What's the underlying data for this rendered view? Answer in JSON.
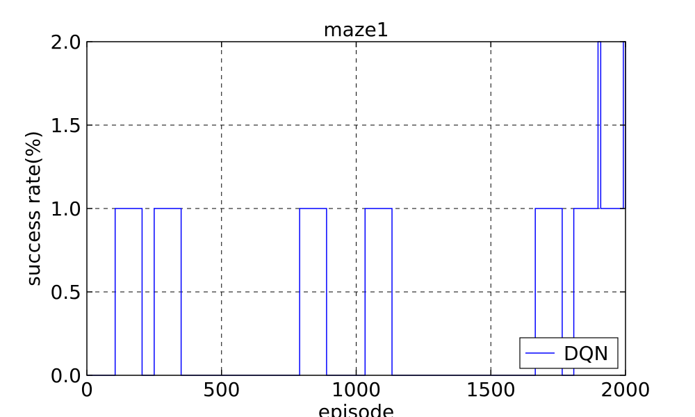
{
  "chart_data": {
    "type": "line",
    "title": "maze1",
    "xlabel": "episode",
    "ylabel": "success rate(%)",
    "xlim": [
      0,
      2000
    ],
    "ylim": [
      0,
      2.0
    ],
    "xticks": [
      0,
      500,
      1000,
      1500,
      2000
    ],
    "yticks": [
      0.0,
      0.5,
      1.0,
      1.5,
      2.0
    ],
    "xtick_labels": [
      "0",
      "500",
      "1000",
      "1500",
      "2000"
    ],
    "ytick_labels": [
      "0.0",
      "0.5",
      "1.0",
      "1.5",
      "2.0"
    ],
    "grid": true,
    "legend_position": "bottom-right",
    "step": true,
    "series": [
      {
        "name": "DQN",
        "color": "#0000ff",
        "x": [
          0,
          105,
          205,
          250,
          350,
          790,
          890,
          1033,
          1133,
          1665,
          1765,
          1808,
          1898,
          1908,
          1992,
          2000
        ],
        "y": [
          0,
          1,
          0,
          1,
          0,
          1,
          0,
          1,
          0,
          1,
          0,
          1,
          2,
          1,
          2,
          1
        ]
      }
    ]
  }
}
